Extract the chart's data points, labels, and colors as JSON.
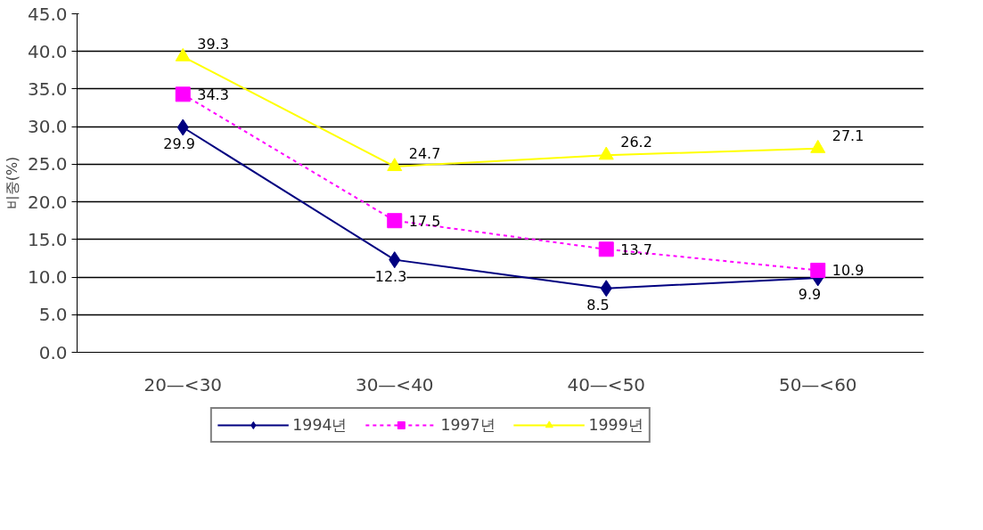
{
  "chart_data": {
    "type": "line",
    "ylabel": "비중(%)",
    "categories": [
      "20—<30",
      "30—<40",
      "40—<50",
      "50—<60"
    ],
    "series": [
      {
        "name": "1994년",
        "color": "#000080",
        "values": [
          29.9,
          12.3,
          8.5,
          9.9
        ],
        "marker": "diamond",
        "line_style": "solid"
      },
      {
        "name": "1997년",
        "color": "#ff00ff",
        "values": [
          34.3,
          17.5,
          13.7,
          10.9
        ],
        "marker": "square",
        "line_style": "dotted"
      },
      {
        "name": "1999년",
        "color": "#ffff00",
        "values": [
          39.3,
          24.7,
          26.2,
          27.1
        ],
        "marker": "triangle",
        "line_style": "solid"
      }
    ],
    "ylim": [
      0,
      45
    ],
    "yticks": [
      {
        "value": 0,
        "label": "0.0"
      },
      {
        "value": 5,
        "label": "5.0"
      },
      {
        "value": 10,
        "label": "10.0"
      },
      {
        "value": 15,
        "label": "15.0"
      },
      {
        "value": 20,
        "label": "20.0"
      },
      {
        "value": 25,
        "label": "25.0"
      },
      {
        "value": 30,
        "label": "30.0"
      },
      {
        "value": 35,
        "label": "35.0"
      },
      {
        "value": 40,
        "label": "40.0"
      },
      {
        "value": 45,
        "label": "45.0"
      }
    ],
    "grid": "y",
    "legend": "bottom",
    "data_labels": true
  }
}
